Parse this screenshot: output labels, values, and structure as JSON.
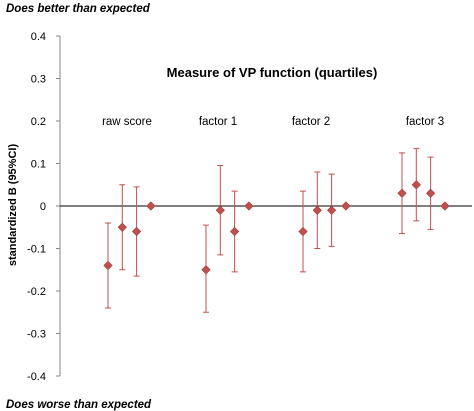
{
  "chart_data": {
    "type": "scatter",
    "subtype": "dot-with-error-bars",
    "title": "Measure of VP function (quartiles)",
    "ylabel": "standardized B (95%CI)",
    "top_annotation": "Does better than expected",
    "bottom_annotation": "Does worse than expected",
    "ylim": [
      -0.4,
      0.4
    ],
    "yticks": [
      {
        "value": 0.4,
        "label": "0.4"
      },
      {
        "value": 0.3,
        "label": "0.3"
      },
      {
        "value": 0.2,
        "label": "0.2"
      },
      {
        "value": 0.1,
        "label": "0.1"
      },
      {
        "value": 0,
        "label": "0"
      },
      {
        "value": -0.1,
        "label": "-0.1"
      },
      {
        "value": -0.2,
        "label": "-0.2"
      },
      {
        "value": -0.3,
        "label": "-0.3"
      },
      {
        "value": -0.4,
        "label": "-0.4"
      }
    ],
    "grid": false,
    "reference_line": 0,
    "groups": [
      {
        "name": "raw score",
        "points": [
          {
            "y": -0.14,
            "lower": -0.24,
            "upper": -0.04
          },
          {
            "y": -0.05,
            "lower": -0.15,
            "upper": 0.05
          },
          {
            "y": -0.06,
            "lower": -0.165,
            "upper": 0.045
          },
          {
            "y": 0.0,
            "lower": 0.0,
            "upper": 0.0
          }
        ]
      },
      {
        "name": "factor 1",
        "points": [
          {
            "y": -0.15,
            "lower": -0.25,
            "upper": -0.045
          },
          {
            "y": -0.01,
            "lower": -0.115,
            "upper": 0.095
          },
          {
            "y": -0.06,
            "lower": -0.155,
            "upper": 0.035
          },
          {
            "y": 0.0,
            "lower": 0.0,
            "upper": 0.0
          }
        ]
      },
      {
        "name": "factor 2",
        "points": [
          {
            "y": -0.06,
            "lower": -0.155,
            "upper": 0.035
          },
          {
            "y": -0.01,
            "lower": -0.1,
            "upper": 0.08
          },
          {
            "y": -0.01,
            "lower": -0.095,
            "upper": 0.075
          },
          {
            "y": 0.0,
            "lower": 0.0,
            "upper": 0.0
          }
        ]
      },
      {
        "name": "factor 3",
        "points": [
          {
            "y": 0.03,
            "lower": -0.065,
            "upper": 0.125
          },
          {
            "y": 0.05,
            "lower": -0.035,
            "upper": 0.135
          },
          {
            "y": 0.03,
            "lower": -0.055,
            "upper": 0.115
          },
          {
            "y": 0.0,
            "lower": 0.0,
            "upper": 0.0
          }
        ]
      }
    ],
    "colors": {
      "marker": "#c0504d",
      "error_bar": "#c0504d",
      "axis": "#868686",
      "zero_line": "#000000",
      "text": "#000000"
    }
  }
}
